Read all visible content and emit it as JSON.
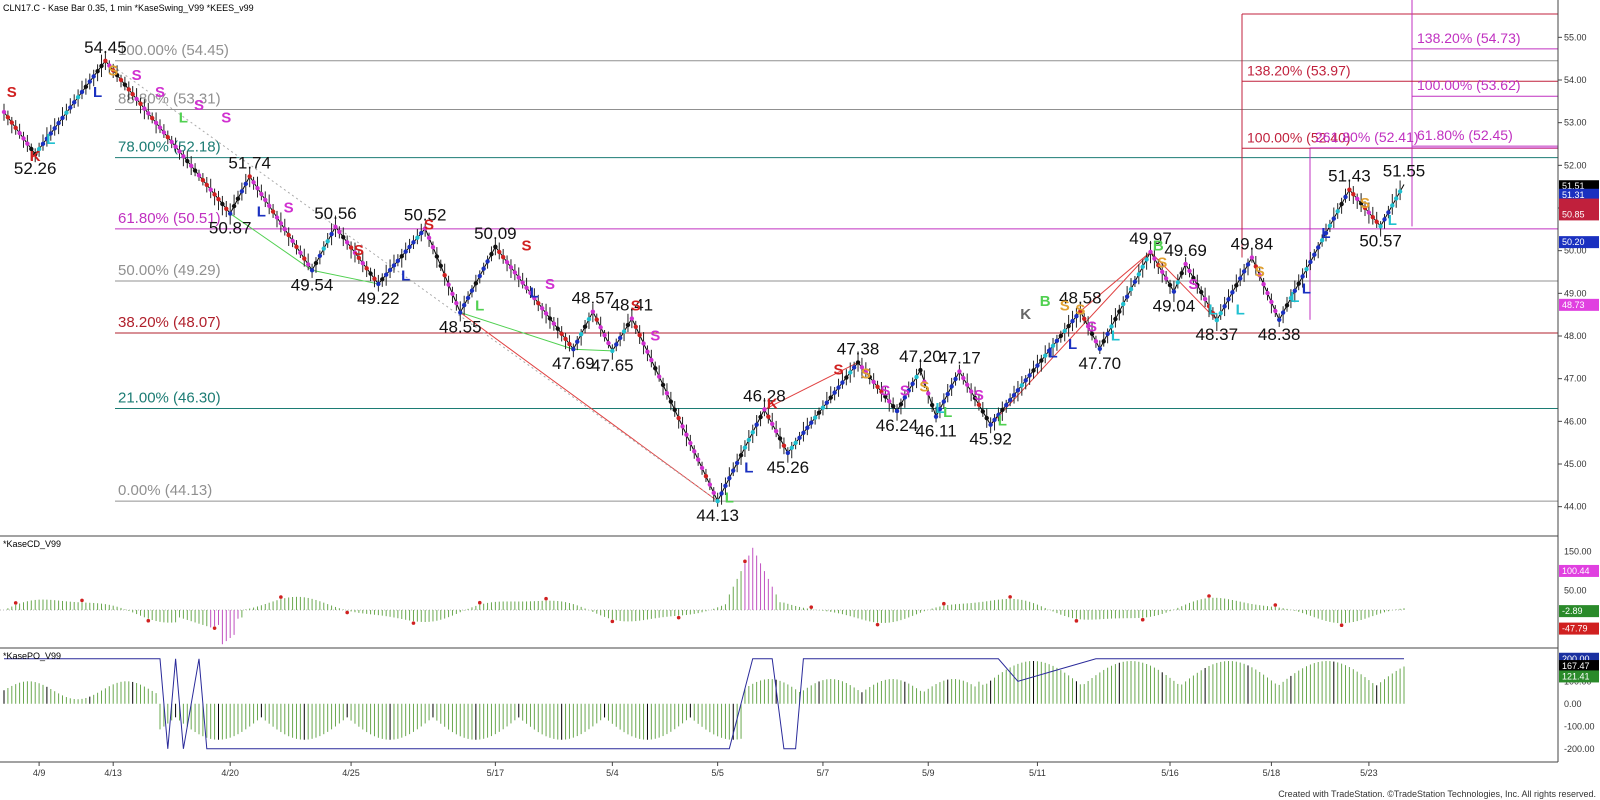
{
  "window": {
    "title": "CLN17.C - Kase Bar 0.35, 1 min  *KaseSwing_V99  *KEES_v99",
    "footer": "Created with TradeStation. ©TradeStation Technologies, Inc. All rights reserved."
  },
  "colors": {
    "fib_gray": "#909090",
    "fib_teal": "#1c7c74",
    "fib_magenta": "#c030c0",
    "fib_red": "#b0202c",
    "target_red": "#c0203c",
    "target_magenta": "#c030c0",
    "swing_line": "#000000",
    "green_line": "#50d050",
    "red_line": "#e04040",
    "bar_blue": "#1a30c0",
    "bar_red": "#d02020",
    "bar_magenta": "#d030d0",
    "bar_cyan": "#20c0d0",
    "hist_green": "#6aa84f",
    "hist_magenta": "#c050c0",
    "po_black": "#000000",
    "po_line": "#2a2a9a"
  },
  "chart_data": [
    {
      "type": "line",
      "panel": "price",
      "title": "CLN17.C - Kase Bar 0.35, 1 min  *KaseSwing_V99  *KEES_v99",
      "ylim": [
        43.5,
        55.5
      ],
      "y_ticks": [
        "44.00",
        "45.00",
        "46.00",
        "47.00",
        "48.00",
        "49.00",
        "50.00",
        "51.00",
        "52.00",
        "53.00",
        "54.00",
        "55.00"
      ],
      "x_tick_labels": [
        "4/9",
        "4/13",
        "4/20",
        "4/25",
        "5/17",
        "5/4",
        "5/5",
        "5/7",
        "5/9",
        "5/11",
        "5/16",
        "5/18",
        "5/23"
      ],
      "swing_pivots": [
        {
          "bar": 0,
          "price": 53.25,
          "label": ""
        },
        {
          "bar": 8,
          "price": 52.26,
          "label": "52.26"
        },
        {
          "bar": 26,
          "price": 54.45,
          "label": "54.45"
        },
        {
          "bar": 58,
          "price": 50.87,
          "label": "50.87"
        },
        {
          "bar": 63,
          "price": 51.74,
          "label": "51.74"
        },
        {
          "bar": 79,
          "price": 49.54,
          "label": "49.54"
        },
        {
          "bar": 85,
          "price": 50.56,
          "label": "50.56"
        },
        {
          "bar": 96,
          "price": 49.22,
          "label": "49.22"
        },
        {
          "bar": 108,
          "price": 50.52,
          "label": "50.52"
        },
        {
          "bar": 117,
          "price": 48.55,
          "label": "48.55"
        },
        {
          "bar": 126,
          "price": 50.09,
          "label": "50.09"
        },
        {
          "bar": 146,
          "price": 47.69,
          "label": "47.69"
        },
        {
          "bar": 151,
          "price": 48.57,
          "label": "48.57"
        },
        {
          "bar": 156,
          "price": 47.65,
          "label": "47.65"
        },
        {
          "bar": 161,
          "price": 48.41,
          "label": "48.41"
        },
        {
          "bar": 183,
          "price": 44.13,
          "label": "44.13"
        },
        {
          "bar": 195,
          "price": 46.28,
          "label": "46.28"
        },
        {
          "bar": 201,
          "price": 45.26,
          "label": "45.26"
        },
        {
          "bar": 219,
          "price": 47.38,
          "label": "47.38"
        },
        {
          "bar": 229,
          "price": 46.24,
          "label": "46.24"
        },
        {
          "bar": 235,
          "price": 47.2,
          "label": "47.20"
        },
        {
          "bar": 239,
          "price": 46.11,
          "label": "46.11"
        },
        {
          "bar": 245,
          "price": 47.17,
          "label": "47.17"
        },
        {
          "bar": 253,
          "price": 45.92,
          "label": "45.92"
        },
        {
          "bar": 276,
          "price": 48.58,
          "label": "48.58"
        },
        {
          "bar": 281,
          "price": 47.7,
          "label": "47.70"
        },
        {
          "bar": 294,
          "price": 49.97,
          "label": "49.97"
        },
        {
          "bar": 300,
          "price": 49.04,
          "label": "49.04"
        },
        {
          "bar": 303,
          "price": 49.69,
          "label": "49.69"
        },
        {
          "bar": 311,
          "price": 48.37,
          "label": "48.37"
        },
        {
          "bar": 320,
          "price": 49.84,
          "label": "49.84"
        },
        {
          "bar": 327,
          "price": 48.38,
          "label": "48.38"
        },
        {
          "bar": 345,
          "price": 51.43,
          "label": "51.43"
        },
        {
          "bar": 353,
          "price": 50.57,
          "label": "50.57"
        },
        {
          "bar": 359,
          "price": 51.55,
          "label": "51.55"
        }
      ],
      "bar_count": 360,
      "fib_levels": [
        {
          "label": "100.00% (54.45)",
          "price": 54.45,
          "color": "gray"
        },
        {
          "label": "88.80% (53.31)",
          "price": 53.31,
          "color": "gray"
        },
        {
          "label": "78.00% (52.18)",
          "price": 52.18,
          "color": "teal"
        },
        {
          "label": "61.80% (50.51)",
          "price": 50.51,
          "color": "magenta"
        },
        {
          "label": "50.00% (49.29)",
          "price": 49.29,
          "color": "gray"
        },
        {
          "label": "38.20% (48.07)",
          "price": 48.07,
          "color": "red"
        },
        {
          "label": "21.00% (46.30)",
          "price": 46.3,
          "color": "teal"
        },
        {
          "label": "0.00% (44.13)",
          "price": 44.13,
          "color": "gray"
        }
      ],
      "target_levels": [
        {
          "label": "138.20% (53.97)",
          "price": 53.97,
          "color": "red"
        },
        {
          "label": "100.00% (52.40)",
          "price": 52.4,
          "color": "red"
        },
        {
          "label": "138.20% (54.73)",
          "price": 54.73,
          "color": "magenta"
        },
        {
          "label": "100.00% (53.62)",
          "price": 53.62,
          "color": "magenta"
        },
        {
          "label": "61.80% (52.45)",
          "price": 52.45,
          "color": "magenta"
        },
        {
          "label": "261.80% (52.41)",
          "price": 52.41,
          "color": "magenta"
        }
      ],
      "swing_markers": [
        {
          "bar": 2,
          "price": 53.6,
          "text": "S",
          "color": "red"
        },
        {
          "bar": 8,
          "price": 52.1,
          "text": "K",
          "color": "red"
        },
        {
          "bar": 12,
          "price": 52.5,
          "text": "L",
          "color": "cyan"
        },
        {
          "bar": 24,
          "price": 53.6,
          "text": "L",
          "color": "blue"
        },
        {
          "bar": 28,
          "price": 54.1,
          "text": "S",
          "color": "orange"
        },
        {
          "bar": 34,
          "price": 54.0,
          "text": "S",
          "color": "magenta"
        },
        {
          "bar": 40,
          "price": 53.6,
          "text": "S",
          "color": "magenta"
        },
        {
          "bar": 46,
          "price": 53.0,
          "text": "L",
          "color": "green"
        },
        {
          "bar": 50,
          "price": 53.3,
          "text": "S",
          "color": "magenta"
        },
        {
          "bar": 57,
          "price": 53.0,
          "text": "S",
          "color": "magenta"
        },
        {
          "bar": 66,
          "price": 50.8,
          "text": "L",
          "color": "blue"
        },
        {
          "bar": 73,
          "price": 50.9,
          "text": "S",
          "color": "magenta"
        },
        {
          "bar": 91,
          "price": 49.9,
          "text": "S",
          "color": "red"
        },
        {
          "bar": 103,
          "price": 49.3,
          "text": "L",
          "color": "blue"
        },
        {
          "bar": 109,
          "price": 50.5,
          "text": "S",
          "color": "red"
        },
        {
          "bar": 122,
          "price": 48.6,
          "text": "L",
          "color": "green"
        },
        {
          "bar": 134,
          "price": 50.0,
          "text": "S",
          "color": "red"
        },
        {
          "bar": 140,
          "price": 49.1,
          "text": "S",
          "color": "magenta"
        },
        {
          "bar": 136,
          "price": 48.9,
          "text": "L",
          "color": "blue"
        },
        {
          "bar": 162,
          "price": 48.6,
          "text": "S",
          "color": "red"
        },
        {
          "bar": 167,
          "price": 47.9,
          "text": "S",
          "color": "magenta"
        },
        {
          "bar": 186,
          "price": 44.1,
          "text": "L",
          "color": "green"
        },
        {
          "bar": 191,
          "price": 44.8,
          "text": "L",
          "color": "blue"
        },
        {
          "bar": 197,
          "price": 46.3,
          "text": "K",
          "color": "red"
        },
        {
          "bar": 214,
          "price": 47.1,
          "text": "S",
          "color": "red"
        },
        {
          "bar": 221,
          "price": 47.0,
          "text": "S",
          "color": "orange"
        },
        {
          "bar": 226,
          "price": 46.6,
          "text": "S",
          "color": "magenta"
        },
        {
          "bar": 231,
          "price": 46.6,
          "text": "S",
          "color": "magenta"
        },
        {
          "bar": 236,
          "price": 46.7,
          "text": "S",
          "color": "orange"
        },
        {
          "bar": 240,
          "price": 46.2,
          "text": "L",
          "color": "cyan"
        },
        {
          "bar": 242,
          "price": 46.1,
          "text": "L",
          "color": "green"
        },
        {
          "bar": 250,
          "price": 46.5,
          "text": "S",
          "color": "magenta"
        },
        {
          "bar": 256,
          "price": 45.9,
          "text": "L",
          "color": "green"
        },
        {
          "bar": 262,
          "price": 48.4,
          "text": "K",
          "color": "gray"
        },
        {
          "bar": 267,
          "price": 48.7,
          "text": "B",
          "color": "green"
        },
        {
          "bar": 272,
          "price": 48.6,
          "text": "S",
          "color": "orange"
        },
        {
          "bar": 276,
          "price": 48.5,
          "text": "S",
          "color": "orange"
        },
        {
          "bar": 279,
          "price": 48.1,
          "text": "S",
          "color": "magenta"
        },
        {
          "bar": 269,
          "price": 47.5,
          "text": "L",
          "color": "blue"
        },
        {
          "bar": 274,
          "price": 47.7,
          "text": "L",
          "color": "blue"
        },
        {
          "bar": 285,
          "price": 47.9,
          "text": "L",
          "color": "cyan"
        },
        {
          "bar": 296,
          "price": 50.0,
          "text": "B",
          "color": "green"
        },
        {
          "bar": 297,
          "price": 49.6,
          "text": "S",
          "color": "orange"
        },
        {
          "bar": 305,
          "price": 49.1,
          "text": "S",
          "color": "magenta"
        },
        {
          "bar": 310,
          "price": 48.5,
          "text": "L",
          "color": "cyan"
        },
        {
          "bar": 317,
          "price": 48.5,
          "text": "L",
          "color": "cyan"
        },
        {
          "bar": 322,
          "price": 49.4,
          "text": "S",
          "color": "orange"
        },
        {
          "bar": 331,
          "price": 48.8,
          "text": "L",
          "color": "cyan"
        },
        {
          "bar": 334,
          "price": 49.0,
          "text": "L",
          "color": "blue"
        },
        {
          "bar": 339,
          "price": 50.3,
          "text": "L",
          "color": "blue"
        },
        {
          "bar": 349,
          "price": 51.0,
          "text": "S",
          "color": "orange"
        },
        {
          "bar": 356,
          "price": 50.6,
          "text": "L",
          "color": "cyan"
        }
      ],
      "trend_lines": [
        {
          "color": "green",
          "points": [
            [
              58,
              50.87
            ],
            [
              79,
              49.54
            ]
          ]
        },
        {
          "color": "green",
          "points": [
            [
              79,
              49.54
            ],
            [
              96,
              49.22
            ]
          ]
        },
        {
          "color": "green",
          "points": [
            [
              117,
              48.55
            ],
            [
              146,
              47.69
            ]
          ]
        },
        {
          "color": "green",
          "points": [
            [
              146,
              47.69
            ],
            [
              156,
              47.65
            ]
          ]
        },
        {
          "color": "red",
          "points": [
            [
              117,
              48.55
            ],
            [
              183,
              44.13
            ]
          ]
        },
        {
          "color": "red",
          "points": [
            [
              195,
              46.28
            ],
            [
              219,
              47.38
            ]
          ]
        },
        {
          "color": "red",
          "points": [
            [
              253,
              45.92
            ],
            [
              294,
              49.97
            ]
          ]
        },
        {
          "color": "red",
          "points": [
            [
              276,
              48.58
            ],
            [
              294,
              49.97
            ]
          ]
        },
        {
          "color": "red",
          "points": [
            [
              294,
              49.97
            ],
            [
              311,
              48.37
            ]
          ]
        }
      ],
      "right_axis_badges": [
        {
          "text": "51.51",
          "bg": "#000000",
          "fg": "#ffffff",
          "price": 51.51
        },
        {
          "text": "51.31",
          "bg": "#1a30c0",
          "fg": "#ffffff",
          "price": 51.31
        },
        {
          "text": "",
          "bg": "#c0203c",
          "fg": "#ffffff",
          "price": 51.08
        },
        {
          "text": "50.85",
          "bg": "#c0203c",
          "fg": "#ffffff",
          "price": 50.85
        },
        {
          "text": "50.20",
          "bg": "#1a30c0",
          "fg": "#ffffff",
          "price": 50.2
        },
        {
          "text": "48.73",
          "bg": "#e040e0",
          "fg": "#ffffff",
          "price": 48.73
        }
      ]
    },
    {
      "type": "bar",
      "panel": "kasecd",
      "title": "*KaseCD_V99",
      "ylim": [
        -90,
        180
      ],
      "y_ticks": [
        "150.00",
        "100.00",
        "50.00",
        "0.00",
        "-50.00"
      ],
      "right_axis_badges": [
        {
          "text": "100.44",
          "bg": "#e040e0",
          "fg": "#ffffff",
          "value": 100.44
        },
        {
          "text": "-2.89",
          "bg": "#2a8a2a",
          "fg": "#ffffff",
          "value": -2.89
        },
        {
          "text": "-47.79",
          "bg": "#d02020",
          "fg": "#ffffff",
          "value": -47.79
        }
      ]
    },
    {
      "type": "bar",
      "panel": "kasepo",
      "title": "*KasePO_V99",
      "ylim": [
        -250,
        230
      ],
      "y_ticks": [
        "200.00",
        "100.00",
        "0.00",
        "-100.00",
        "-200.00"
      ],
      "right_axis_badges": [
        {
          "text": "200.00",
          "bg": "#1a30a0",
          "fg": "#ffffff",
          "value": 200
        },
        {
          "text": "167.47",
          "bg": "#000000",
          "fg": "#ffffff",
          "value": 167.47
        },
        {
          "text": "121.41",
          "bg": "#2a8a2a",
          "fg": "#ffffff",
          "value": 121.41
        }
      ]
    }
  ]
}
